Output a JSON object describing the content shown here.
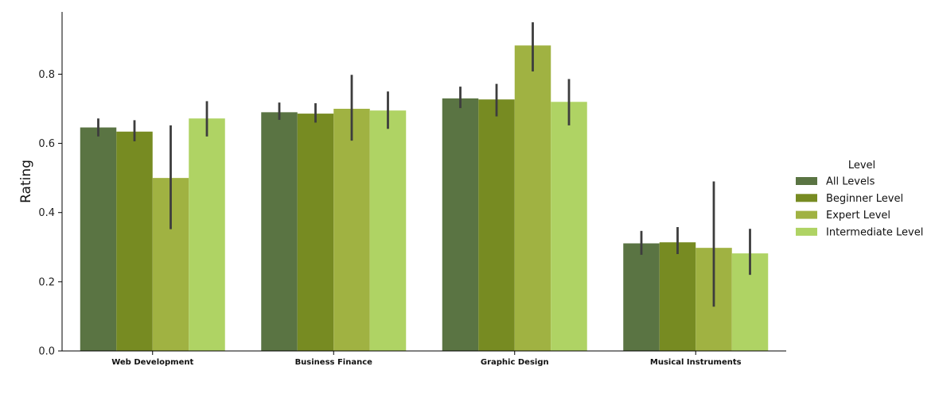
{
  "chart_data": {
    "type": "bar",
    "title": "",
    "xlabel": "",
    "ylabel": "Rating",
    "ylim": [
      0,
      0.98
    ],
    "yticks": [
      0.0,
      0.2,
      0.4,
      0.6,
      0.8
    ],
    "ytick_labels": [
      "0.0",
      "0.2",
      "0.4",
      "0.6",
      "0.8"
    ],
    "categories": [
      "Web Development",
      "Business Finance",
      "Graphic Design",
      "Musical Instruments"
    ],
    "legend": {
      "title": "Level",
      "position": "right"
    },
    "grid": false,
    "series": [
      {
        "name": "All Levels",
        "color": "#5a7443",
        "values": [
          0.646,
          0.69,
          0.73,
          0.311
        ],
        "ci_low": [
          0.62,
          0.668,
          0.702,
          0.278
        ],
        "ci_high": [
          0.672,
          0.718,
          0.764,
          0.347
        ]
      },
      {
        "name": "Beginner Level",
        "color": "#778b22",
        "values": [
          0.634,
          0.686,
          0.727,
          0.314
        ],
        "ci_low": [
          0.606,
          0.66,
          0.678,
          0.28
        ],
        "ci_high": [
          0.667,
          0.716,
          0.772,
          0.358
        ]
      },
      {
        "name": "Expert Level",
        "color": "#a0b242",
        "values": [
          0.5,
          0.7,
          0.883,
          0.298
        ],
        "ci_low": [
          0.352,
          0.608,
          0.808,
          0.128
        ],
        "ci_high": [
          0.652,
          0.798,
          0.95,
          0.49
        ]
      },
      {
        "name": "Intermediate Level",
        "color": "#afd364",
        "values": [
          0.672,
          0.695,
          0.72,
          0.282
        ],
        "ci_low": [
          0.62,
          0.642,
          0.652,
          0.22
        ],
        "ci_high": [
          0.722,
          0.75,
          0.786,
          0.353
        ]
      }
    ],
    "error_bar_color": "#3d3d3d"
  }
}
